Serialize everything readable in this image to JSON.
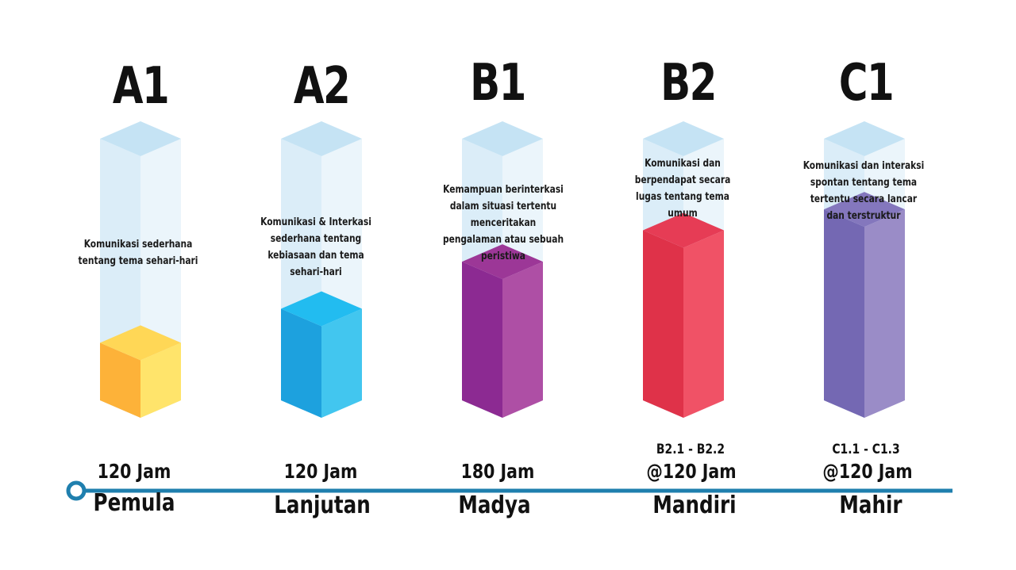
{
  "timeline": {
    "line_color": "#1f7fae"
  },
  "levels": [
    {
      "code": "A1",
      "description": "Komunikasi sederhana tentang tema sehari-hari",
      "sub_levels": "",
      "hours": "120 Jam",
      "name": "Pemula",
      "fill_level": 0.22,
      "colors": {
        "front": "#fdb239",
        "side": "#ffe46b",
        "top": "#ffd756"
      }
    },
    {
      "code": "A2",
      "description": "Komunikasi & Interkasi sederhana tentang kebiasaan dan tema sehari-hari",
      "sub_levels": "",
      "hours": "120 Jam",
      "name": "Lanjutan",
      "fill_level": 0.35,
      "colors": {
        "front": "#1da1de",
        "side": "#42c6ef",
        "top": "#22bcf0"
      }
    },
    {
      "code": "B1",
      "description": "Kemampuan berinterkasi dalam situasi tertentu menceritakan pengalaman atau sebuah peristiwa",
      "sub_levels": "",
      "hours": "180 Jam",
      "name": "Madya",
      "fill_level": 0.53,
      "colors": {
        "front": "#8c2a92",
        "side": "#ae4fa5",
        "top": "#9c3797"
      }
    },
    {
      "code": "B2",
      "description": "Komunikasi dan berpendapat secara lugas tentang tema umum",
      "sub_levels": "B2.1 - B2.2",
      "hours": "@120 Jam",
      "name": "Mandiri",
      "fill_level": 0.65,
      "colors": {
        "front": "#df3249",
        "side": "#f05266",
        "top": "#e63c55"
      }
    },
    {
      "code": "C1",
      "description": "Komunikasi dan interaksi spontan tentang tema tertentu secara lancar dan terstruktur",
      "sub_levels": "C1.1 - C1.3",
      "hours": "@120 Jam",
      "name": "Mahir",
      "fill_level": 0.73,
      "colors": {
        "front": "#7468b3",
        "side": "#9a8cc7",
        "top": "#8477bd"
      }
    }
  ]
}
